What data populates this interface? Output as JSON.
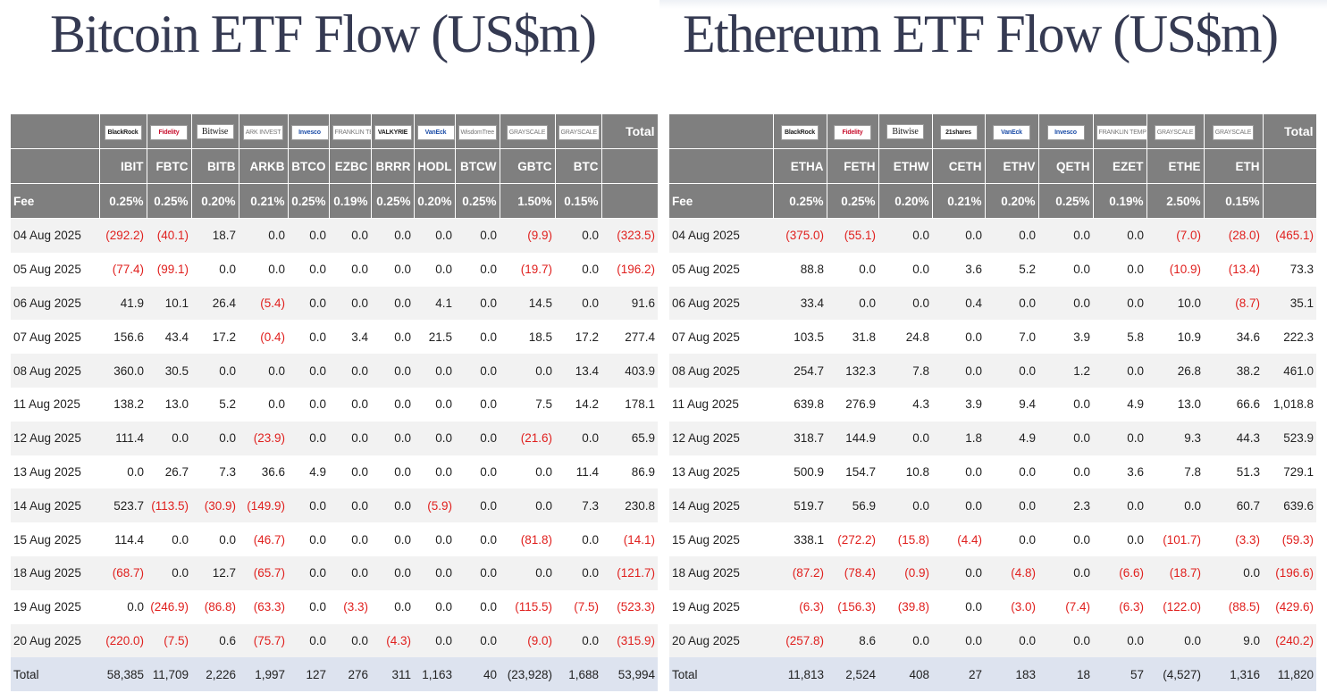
{
  "btc": {
    "title": "Bitcoin ETF Flow (US$m)",
    "logos": [
      "BlackRock",
      "Fidelity",
      "Bitwise",
      "ARK INVEST",
      "Invesco",
      "FRANKLIN TEMPLETON",
      "VALKYRIE",
      "VanEck",
      "WisdomTree",
      "GRAYSCALE",
      "GRAYSCALE"
    ],
    "total_label": "Total",
    "tickers": [
      "IBIT",
      "FBTC",
      "BITB",
      "ARKB",
      "BTCO",
      "EZBC",
      "BRRR",
      "HODL",
      "BTCW",
      "GBTC",
      "BTC"
    ],
    "fee_label": "Fee",
    "fees": [
      "0.25%",
      "0.25%",
      "0.20%",
      "0.21%",
      "0.25%",
      "0.19%",
      "0.25%",
      "0.20%",
      "0.25%",
      "1.50%",
      "0.15%"
    ],
    "rows": [
      {
        "date": "04 Aug 2025",
        "values": [
          "(292.2)",
          "(40.1)",
          "18.7",
          "0.0",
          "0.0",
          "0.0",
          "0.0",
          "0.0",
          "0.0",
          "(9.9)",
          "0.0",
          "(323.5)"
        ]
      },
      {
        "date": "05 Aug 2025",
        "values": [
          "(77.4)",
          "(99.1)",
          "0.0",
          "0.0",
          "0.0",
          "0.0",
          "0.0",
          "0.0",
          "0.0",
          "(19.7)",
          "0.0",
          "(196.2)"
        ]
      },
      {
        "date": "06 Aug 2025",
        "values": [
          "41.9",
          "10.1",
          "26.4",
          "(5.4)",
          "0.0",
          "0.0",
          "0.0",
          "4.1",
          "0.0",
          "14.5",
          "0.0",
          "91.6"
        ]
      },
      {
        "date": "07 Aug 2025",
        "values": [
          "156.6",
          "43.4",
          "17.2",
          "(0.4)",
          "0.0",
          "3.4",
          "0.0",
          "21.5",
          "0.0",
          "18.5",
          "17.2",
          "277.4"
        ]
      },
      {
        "date": "08 Aug 2025",
        "values": [
          "360.0",
          "30.5",
          "0.0",
          "0.0",
          "0.0",
          "0.0",
          "0.0",
          "0.0",
          "0.0",
          "0.0",
          "13.4",
          "403.9"
        ]
      },
      {
        "date": "11 Aug 2025",
        "values": [
          "138.2",
          "13.0",
          "5.2",
          "0.0",
          "0.0",
          "0.0",
          "0.0",
          "0.0",
          "0.0",
          "7.5",
          "14.2",
          "178.1"
        ]
      },
      {
        "date": "12 Aug 2025",
        "values": [
          "111.4",
          "0.0",
          "0.0",
          "(23.9)",
          "0.0",
          "0.0",
          "0.0",
          "0.0",
          "0.0",
          "(21.6)",
          "0.0",
          "65.9"
        ]
      },
      {
        "date": "13 Aug 2025",
        "values": [
          "0.0",
          "26.7",
          "7.3",
          "36.6",
          "4.9",
          "0.0",
          "0.0",
          "0.0",
          "0.0",
          "0.0",
          "11.4",
          "86.9"
        ]
      },
      {
        "date": "14 Aug 2025",
        "values": [
          "523.7",
          "(113.5)",
          "(30.9)",
          "(149.9)",
          "0.0",
          "0.0",
          "0.0",
          "(5.9)",
          "0.0",
          "0.0",
          "7.3",
          "230.8"
        ]
      },
      {
        "date": "15 Aug 2025",
        "values": [
          "114.4",
          "0.0",
          "0.0",
          "(46.7)",
          "0.0",
          "0.0",
          "0.0",
          "0.0",
          "0.0",
          "(81.8)",
          "0.0",
          "(14.1)"
        ]
      },
      {
        "date": "18 Aug 2025",
        "values": [
          "(68.7)",
          "0.0",
          "12.7",
          "(65.7)",
          "0.0",
          "0.0",
          "0.0",
          "0.0",
          "0.0",
          "0.0",
          "0.0",
          "(121.7)"
        ]
      },
      {
        "date": "19 Aug 2025",
        "values": [
          "0.0",
          "(246.9)",
          "(86.8)",
          "(63.3)",
          "0.0",
          "(3.3)",
          "0.0",
          "0.0",
          "0.0",
          "(115.5)",
          "(7.5)",
          "(523.3)"
        ]
      },
      {
        "date": "20 Aug 2025",
        "values": [
          "(220.0)",
          "(7.5)",
          "0.6",
          "(75.7)",
          "0.0",
          "0.0",
          "(4.3)",
          "0.0",
          "0.0",
          "(9.0)",
          "0.0",
          "(315.9)"
        ],
        "highlight": true
      }
    ],
    "total_row": {
      "label": "Total",
      "values": [
        "58,385",
        "11,709",
        "2,226",
        "1,997",
        "127",
        "276",
        "311",
        "1,163",
        "40",
        "(23,928)",
        "1,688",
        "53,994"
      ]
    }
  },
  "eth": {
    "title": "Ethereum ETF Flow (US$m)",
    "logos": [
      "BlackRock",
      "Fidelity",
      "Bitwise",
      "21shares",
      "VanEck",
      "Invesco",
      "FRANKLIN TEMPLETON",
      "GRAYSCALE",
      "GRAYSCALE"
    ],
    "total_label": "Total",
    "tickers": [
      "ETHA",
      "FETH",
      "ETHW",
      "CETH",
      "ETHV",
      "QETH",
      "EZET",
      "ETHE",
      "ETH"
    ],
    "fee_label": "Fee",
    "fees": [
      "0.25%",
      "0.25%",
      "0.20%",
      "0.21%",
      "0.20%",
      "0.25%",
      "0.19%",
      "2.50%",
      "0.15%"
    ],
    "rows": [
      {
        "date": "04 Aug 2025",
        "values": [
          "(375.0)",
          "(55.1)",
          "0.0",
          "0.0",
          "0.0",
          "0.0",
          "0.0",
          "(7.0)",
          "(28.0)",
          "(465.1)"
        ]
      },
      {
        "date": "05 Aug 2025",
        "values": [
          "88.8",
          "0.0",
          "0.0",
          "3.6",
          "5.2",
          "0.0",
          "0.0",
          "(10.9)",
          "(13.4)",
          "73.3"
        ]
      },
      {
        "date": "06 Aug 2025",
        "values": [
          "33.4",
          "0.0",
          "0.0",
          "0.4",
          "0.0",
          "0.0",
          "0.0",
          "10.0",
          "(8.7)",
          "35.1"
        ]
      },
      {
        "date": "07 Aug 2025",
        "values": [
          "103.5",
          "31.8",
          "24.8",
          "0.0",
          "7.0",
          "3.9",
          "5.8",
          "10.9",
          "34.6",
          "222.3"
        ]
      },
      {
        "date": "08 Aug 2025",
        "values": [
          "254.7",
          "132.3",
          "7.8",
          "0.0",
          "0.0",
          "1.2",
          "0.0",
          "26.8",
          "38.2",
          "461.0"
        ]
      },
      {
        "date": "11 Aug 2025",
        "values": [
          "639.8",
          "276.9",
          "4.3",
          "3.9",
          "9.4",
          "0.0",
          "4.9",
          "13.0",
          "66.6",
          "1,018.8"
        ]
      },
      {
        "date": "12 Aug 2025",
        "values": [
          "318.7",
          "144.9",
          "0.0",
          "1.8",
          "4.9",
          "0.0",
          "0.0",
          "9.3",
          "44.3",
          "523.9"
        ]
      },
      {
        "date": "13 Aug 2025",
        "values": [
          "500.9",
          "154.7",
          "10.8",
          "0.0",
          "0.0",
          "0.0",
          "3.6",
          "7.8",
          "51.3",
          "729.1"
        ]
      },
      {
        "date": "14 Aug 2025",
        "values": [
          "519.7",
          "56.9",
          "0.0",
          "0.0",
          "0.0",
          "2.3",
          "0.0",
          "0.0",
          "60.7",
          "639.6"
        ]
      },
      {
        "date": "15 Aug 2025",
        "values": [
          "338.1",
          "(272.2)",
          "(15.8)",
          "(4.4)",
          "0.0",
          "0.0",
          "0.0",
          "(101.7)",
          "(3.3)",
          "(59.3)"
        ]
      },
      {
        "date": "18 Aug 2025",
        "values": [
          "(87.2)",
          "(78.4)",
          "(0.9)",
          "0.0",
          "(4.8)",
          "0.0",
          "(6.6)",
          "(18.7)",
          "0.0",
          "(196.6)"
        ]
      },
      {
        "date": "19 Aug 2025",
        "values": [
          "(6.3)",
          "(156.3)",
          "(39.8)",
          "0.0",
          "(3.0)",
          "(7.4)",
          "(6.3)",
          "(122.0)",
          "(88.5)",
          "(429.6)"
        ]
      },
      {
        "date": "20 Aug 2025",
        "values": [
          "(257.8)",
          "8.6",
          "0.0",
          "0.0",
          "0.0",
          "0.0",
          "0.0",
          "0.0",
          "9.0",
          "(240.2)"
        ],
        "highlight": true
      }
    ],
    "total_row": {
      "label": "Total",
      "values": [
        "11,813",
        "2,524",
        "408",
        "27",
        "183",
        "18",
        "57",
        "(4,527)",
        "1,316",
        "11,820"
      ]
    }
  },
  "colors": {
    "header_bg": "#7f7f7f",
    "negative": "#e0201e",
    "highlight": "#99ff99",
    "total_bg": "#dde3ef",
    "title": "#353a52"
  }
}
